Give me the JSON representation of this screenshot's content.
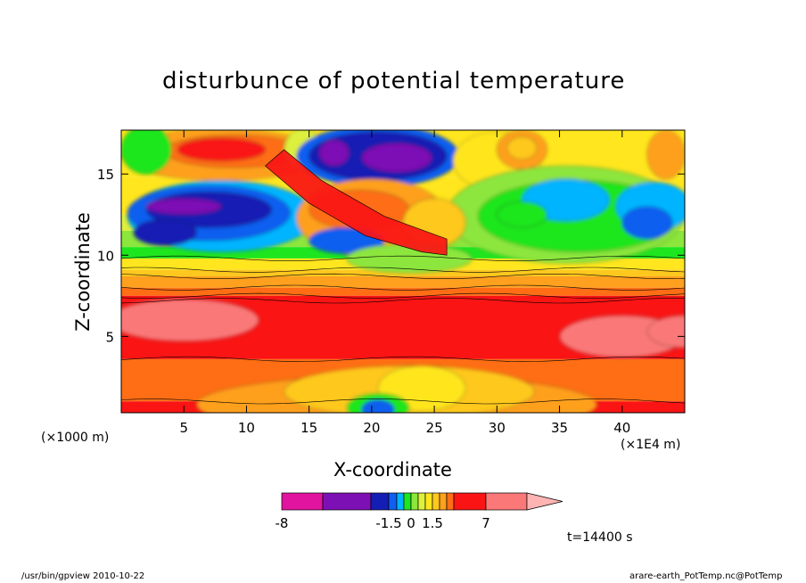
{
  "chart_data": {
    "type": "heatmap",
    "title": "disturbunce of potential temperature",
    "xlabel": "X-coordinate",
    "ylabel": "Z-coordinate",
    "x_unit": "(×1E4 m)",
    "y_unit": "(×1000 m)",
    "xlim": [
      0,
      45
    ],
    "ylim": [
      0.3,
      17.7
    ],
    "x_ticks": [
      5,
      10,
      15,
      20,
      25,
      30,
      35,
      40
    ],
    "y_ticks": [
      5,
      10,
      15
    ],
    "colorbar": {
      "tick_labels": [
        "-8",
        "-1.5",
        "0",
        "1.5",
        "7"
      ],
      "tick_values": [
        -8,
        -1.5,
        0,
        1.5,
        7
      ],
      "levels": [
        -8,
        -5,
        -2,
        -1.5,
        -1,
        -0.5,
        0,
        0.5,
        1,
        1.5,
        2,
        3,
        5,
        7
      ],
      "colors": [
        "#e0149e",
        "#7d10b4",
        "#141eb4",
        "#0f5ff0",
        "#00b4ff",
        "#1ee61e",
        "#8ce63c",
        "#dcf03c",
        "#ffe61e",
        "#ffc81e",
        "#ffa01e",
        "#ff6e14",
        "#fa1414",
        "#fa7878",
        "#ffb4b4"
      ]
    },
    "time_label": "t=14400 s"
  },
  "footer": {
    "left": "/usr/bin/gpview   2010-10-22",
    "right": "arare-earth_PotTemp.nc@PotTemp"
  }
}
